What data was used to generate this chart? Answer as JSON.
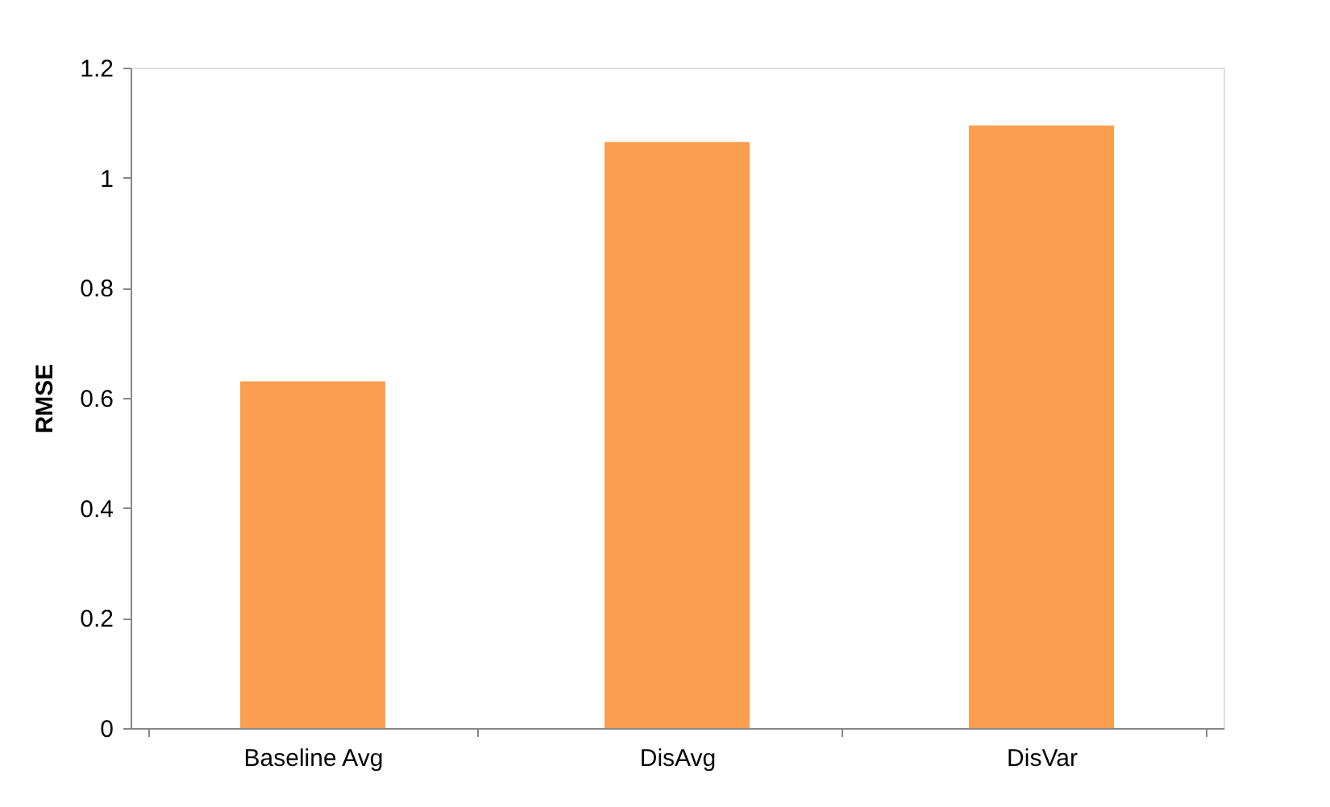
{
  "chart_data": {
    "type": "bar",
    "ylabel": "RMSE",
    "categories": [
      "Baseline Avg",
      "DisAvg",
      "DisVar"
    ],
    "values": [
      0.63,
      1.065,
      1.095
    ],
    "color": "#fb9e4f",
    "ylim": [
      0,
      1.2
    ],
    "yticks": [
      0,
      0.2,
      0.4,
      0.6,
      0.8,
      1,
      1.2
    ],
    "grid": false
  }
}
